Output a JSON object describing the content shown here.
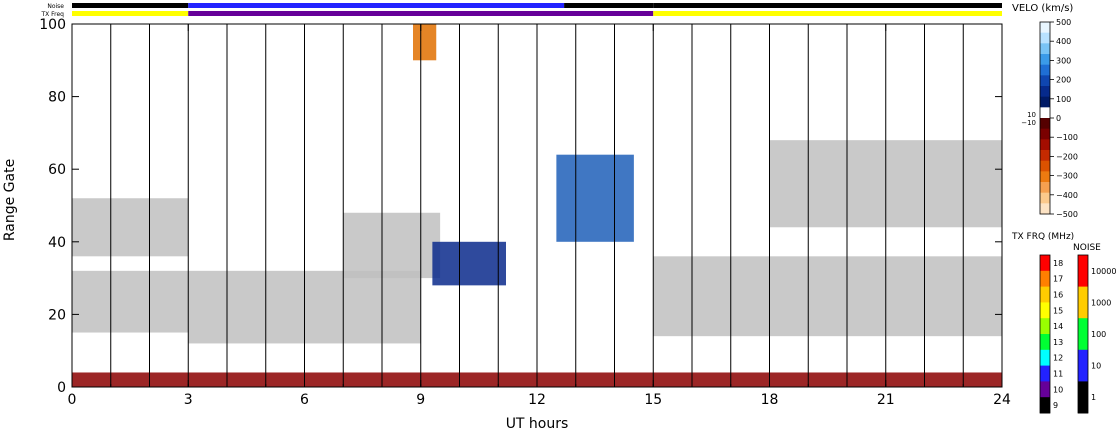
{
  "chart_data": {
    "type": "heatmap",
    "xlabel": "UT hours",
    "ylabel": "Range Gate",
    "xlim": [
      0,
      24
    ],
    "ylim": [
      0,
      100
    ],
    "x_ticks": [
      "0",
      "3",
      "6",
      "9",
      "12",
      "15",
      "18",
      "21",
      "24"
    ],
    "x_tick_values": [
      0,
      3,
      6,
      9,
      12,
      15,
      18,
      21,
      24
    ],
    "y_ticks": [
      "0",
      "20",
      "40",
      "60",
      "80",
      "100"
    ],
    "y_tick_values": [
      0,
      20,
      40,
      60,
      80,
      100
    ],
    "scan_boundaries_ut": [
      1,
      2,
      3,
      4,
      5,
      6,
      7,
      8,
      9,
      10,
      11,
      12,
      13,
      14,
      15,
      16,
      17,
      18,
      19,
      20,
      21,
      22,
      23
    ],
    "top_strips": {
      "noise_label": "Noise",
      "txfreq_label": "TX Freq",
      "txfreq_segments": [
        {
          "from": 0,
          "to": 3,
          "color": "#ffff00"
        },
        {
          "from": 3,
          "to": 15,
          "color": "#660099"
        },
        {
          "from": 15,
          "to": 24,
          "color": "#ffff00"
        }
      ],
      "noise_segments": [
        {
          "from": 0,
          "to": 3,
          "color": "#000000"
        },
        {
          "from": 3,
          "to": 12.7,
          "color": "#2222ff"
        },
        {
          "from": 12.7,
          "to": 15,
          "color": "#000000"
        },
        {
          "from": 15,
          "to": 24,
          "color": "#000000"
        }
      ]
    },
    "regions": [
      {
        "name": "ground scatter band A",
        "color": "#c0c0c0",
        "x0": 0,
        "x1": 3,
        "y0": 36,
        "y1": 52
      },
      {
        "name": "ground scatter band B",
        "color": "#c0c0c0",
        "x0": 0,
        "x1": 3,
        "y0": 15,
        "y1": 32
      },
      {
        "name": "ground scatter rising",
        "color": "#c0c0c0",
        "x0": 3,
        "x1": 9,
        "y0": 12,
        "y1": 32
      },
      {
        "name": "ground scatter upper",
        "color": "#c0c0c0",
        "x0": 7,
        "x1": 9.5,
        "y0": 30,
        "y1": 48
      },
      {
        "name": "negative velocity near-range",
        "color": "#8b0000",
        "x0": 0,
        "x1": 24,
        "y0": 0,
        "y1": 4
      },
      {
        "name": "positive velocity patch",
        "color": "#0a2a8c",
        "x0": 9.3,
        "x1": 11.2,
        "y0": 28,
        "y1": 40
      },
      {
        "name": "streak",
        "color": "#1f5fb8",
        "x0": 12.5,
        "x1": 14.5,
        "y0": 40,
        "y1": 64
      },
      {
        "name": "orange echoes",
        "color": "#e07000",
        "x0": 8.8,
        "x1": 9.4,
        "y0": 90,
        "y1": 100
      },
      {
        "name": "evening ground scatter",
        "color": "#c0c0c0",
        "x0": 15,
        "x1": 24,
        "y0": 14,
        "y1": 36
      },
      {
        "name": "late ground scatter",
        "color": "#c0c0c0",
        "x0": 18,
        "x1": 24,
        "y0": 44,
        "y1": 68
      }
    ],
    "velocity_colorbar": {
      "title": "VELO (km/s)",
      "ticks": [
        "500",
        "400",
        "300",
        "200",
        "100",
        "0",
        "−100",
        "−200",
        "−300",
        "−400",
        "−500"
      ],
      "tick_values": [
        500,
        400,
        300,
        200,
        100,
        0,
        -100,
        -200,
        -300,
        -400,
        -500
      ],
      "inner_labels": [
        "10",
        "−10"
      ],
      "colors": [
        "#e8f6ff",
        "#b8e2ff",
        "#79c4f5",
        "#3b9be8",
        "#1f6fd4",
        "#0f46b0",
        "#062a8c",
        "#001a66",
        "#ffffff",
        "#550000",
        "#7a0000",
        "#a30d00",
        "#c42a00",
        "#dc5200",
        "#ec7a10",
        "#f5a050",
        "#fbc98c",
        "#fde3c4"
      ]
    },
    "txfreq_colorbar": {
      "title": "TX FRQ (MHz)",
      "ticks": [
        "18",
        "17",
        "16",
        "15",
        "14",
        "13",
        "12",
        "11",
        "10",
        "9"
      ],
      "colors": [
        "#ff0000",
        "#ff7f00",
        "#ffcc00",
        "#ffff00",
        "#99ff00",
        "#00ff33",
        "#00ffff",
        "#2222ff",
        "#660099",
        "#000000"
      ]
    },
    "noise_colorbar": {
      "title": "NOISE",
      "ticks": [
        "10000",
        "1000",
        "100",
        "10",
        "1"
      ],
      "colors": [
        "#ff0000",
        "#ffcc00",
        "#00ff33",
        "#2222ff",
        "#000000"
      ]
    },
    "colors": {
      "ground_scatter": "#c0c0c0",
      "axis": "#000000"
    }
  }
}
